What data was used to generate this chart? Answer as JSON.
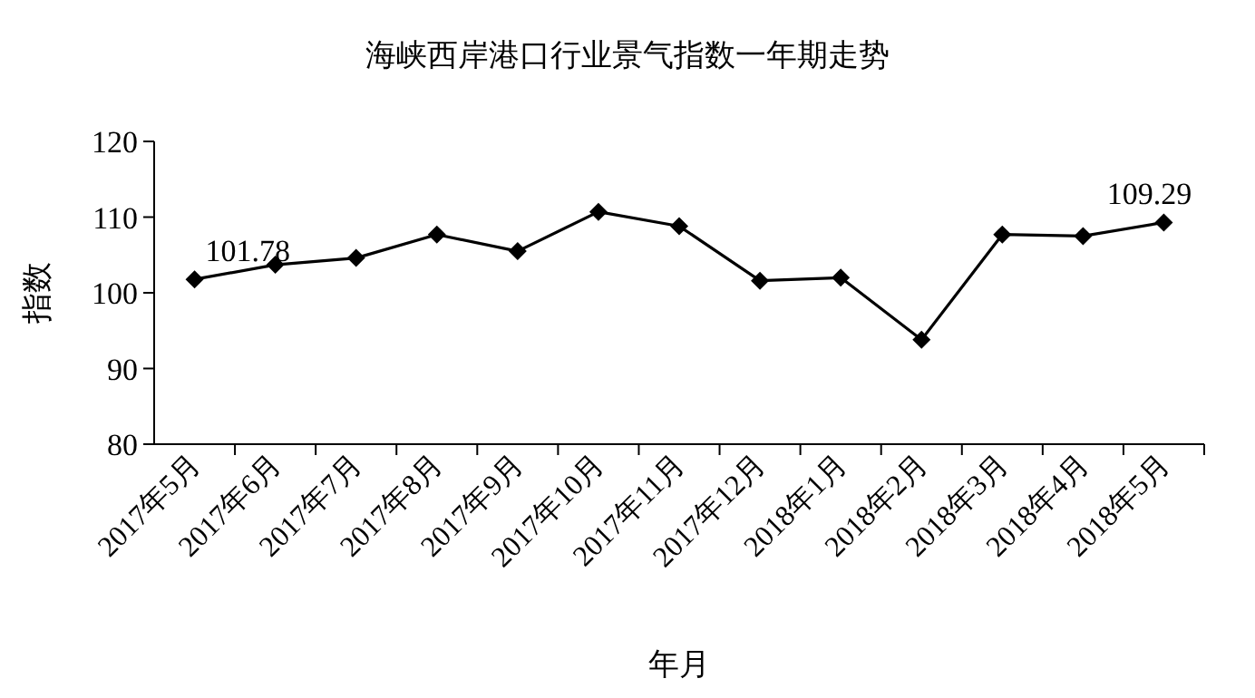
{
  "chart_data": {
    "type": "line",
    "title": "海峡西岸港口行业景气指数一年期走势",
    "xlabel": "年月",
    "ylabel": "指数",
    "categories": [
      "2017年5月",
      "2017年6月",
      "2017年7月",
      "2017年8月",
      "2017年9月",
      "2017年10月",
      "2017年11月",
      "2017年12月",
      "2018年1月",
      "2018年2月",
      "2018年3月",
      "2018年4月",
      "2018年5月"
    ],
    "series": [
      {
        "color": "#000000",
        "values": [
          101.78,
          103.7,
          104.6,
          107.7,
          105.5,
          110.7,
          108.8,
          101.6,
          102.0,
          93.8,
          107.7,
          107.5,
          109.29
        ],
        "value_labels": [
          "101.78",
          null,
          null,
          null,
          null,
          null,
          null,
          null,
          null,
          null,
          null,
          null,
          "109.29"
        ]
      }
    ],
    "ylim": [
      80,
      120
    ],
    "yticks": [
      80,
      90,
      100,
      110,
      120
    ],
    "grid": false,
    "marker": "diamond",
    "line_style": "solid"
  }
}
